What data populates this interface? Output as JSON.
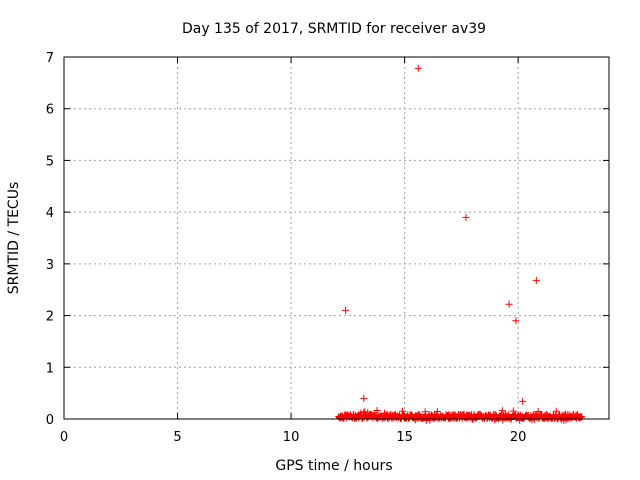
{
  "chart_data": {
    "type": "scatter",
    "title": "Day 135 of 2017, SRMTID for receiver av39",
    "xlabel": "GPS time / hours",
    "ylabel": "SRMTID / TECUs",
    "xlim": [
      0,
      24
    ],
    "ylim": [
      0,
      7
    ],
    "xticks": [
      0,
      5,
      10,
      15,
      20
    ],
    "yticks": [
      0,
      1,
      2,
      3,
      4,
      5,
      6,
      7
    ],
    "grid": true,
    "marker": "+",
    "series_color": "#ff0000",
    "dense_band": {
      "x_start": 12.1,
      "x_end": 22.8,
      "y_typical": 0.05,
      "y_max": 0.17,
      "y_min": -0.03
    },
    "outliers": [
      {
        "x": 12.4,
        "y": 2.1
      },
      {
        "x": 13.2,
        "y": 0.4
      },
      {
        "x": 15.6,
        "y": 6.78
      },
      {
        "x": 17.7,
        "y": 3.9
      },
      {
        "x": 19.6,
        "y": 2.22
      },
      {
        "x": 19.9,
        "y": 1.9
      },
      {
        "x": 20.2,
        "y": 0.34
      },
      {
        "x": 20.8,
        "y": 2.68
      }
    ]
  }
}
